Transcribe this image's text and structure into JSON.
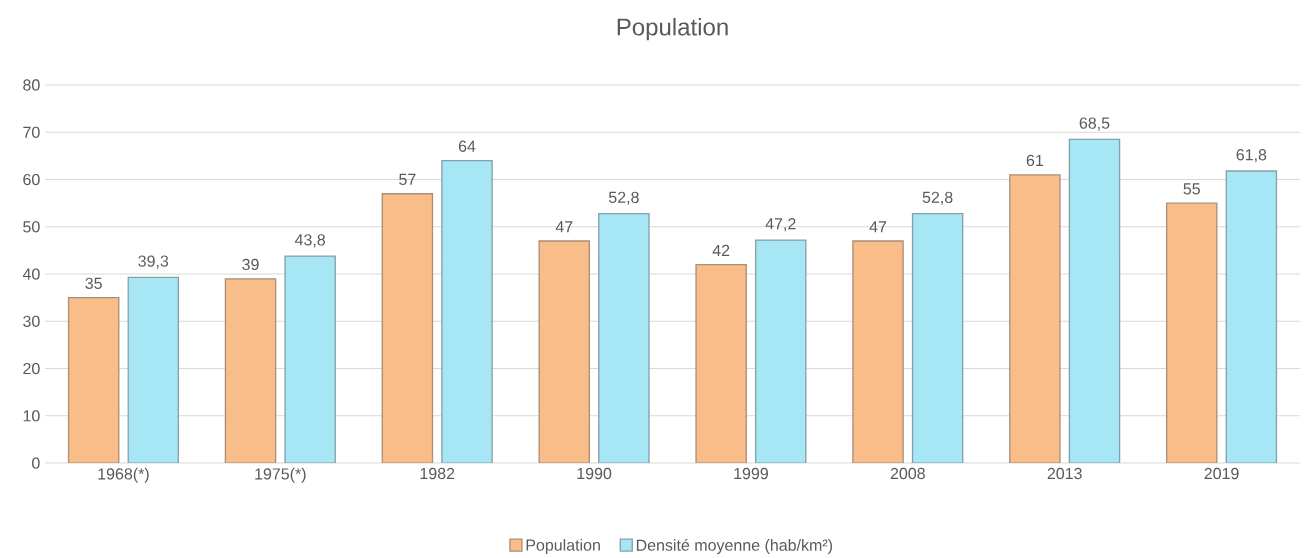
{
  "chart_data": {
    "type": "bar",
    "title": "Population",
    "categories": [
      "1968(*)",
      "1975(*)",
      "1982",
      "1990",
      "1999",
      "2008",
      "2013",
      "2019"
    ],
    "series": [
      {
        "name": "Population",
        "color": "#f9bd8a",
        "values": [
          35,
          39,
          57,
          47,
          42,
          47,
          61,
          55
        ],
        "value_labels": [
          "35",
          "39",
          "57",
          "47",
          "42",
          "47",
          "61",
          "55"
        ]
      },
      {
        "name": "Densité moyenne (hab/km²)",
        "color": "#a6e6f5",
        "values": [
          39.3,
          43.8,
          64,
          52.8,
          47.2,
          52.8,
          68.5,
          61.8
        ],
        "value_labels": [
          "39,3",
          "43,8",
          "64",
          "52,8",
          "47,2",
          "52,8",
          "68,5",
          "61,8"
        ]
      }
    ],
    "ylim": [
      0,
      80
    ],
    "yticks": [
      0,
      10,
      20,
      30,
      40,
      50,
      60,
      70,
      80
    ],
    "grid": "y",
    "legend": "bottom"
  }
}
